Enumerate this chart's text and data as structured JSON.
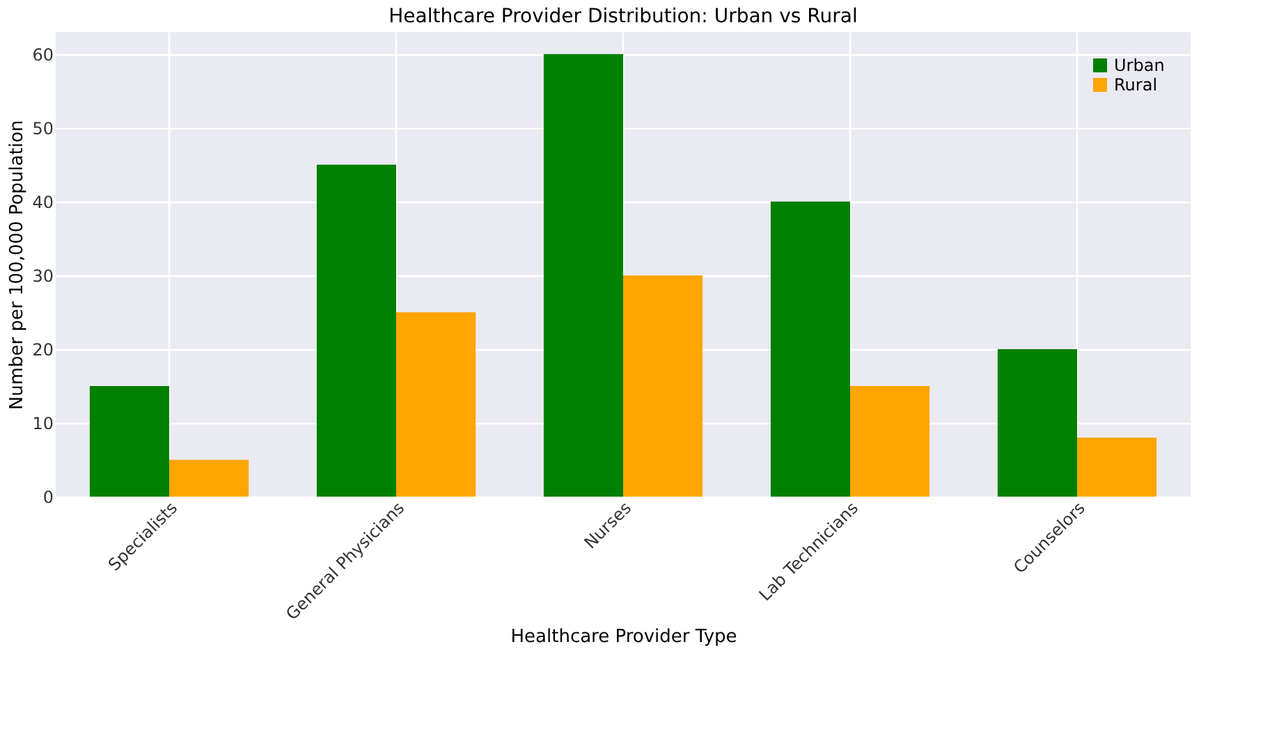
{
  "chart_data": {
    "type": "bar",
    "title": "Healthcare Provider Distribution: Urban vs Rural",
    "xlabel": "Healthcare Provider Type",
    "ylabel": "Number per 100,000 Population",
    "categories": [
      "Specialists",
      "General Physicians",
      "Nurses",
      "Lab Technicians",
      "Counselors"
    ],
    "series": [
      {
        "name": "Urban",
        "color": "#008000",
        "values": [
          15,
          45,
          60,
          40,
          20
        ]
      },
      {
        "name": "Rural",
        "color": "#ffa500",
        "values": [
          5,
          25,
          30,
          15,
          8
        ]
      }
    ],
    "ylim": [
      0,
      63
    ],
    "yticks": [
      0,
      10,
      20,
      30,
      40,
      50,
      60
    ],
    "grid": true,
    "legend": "top right"
  }
}
